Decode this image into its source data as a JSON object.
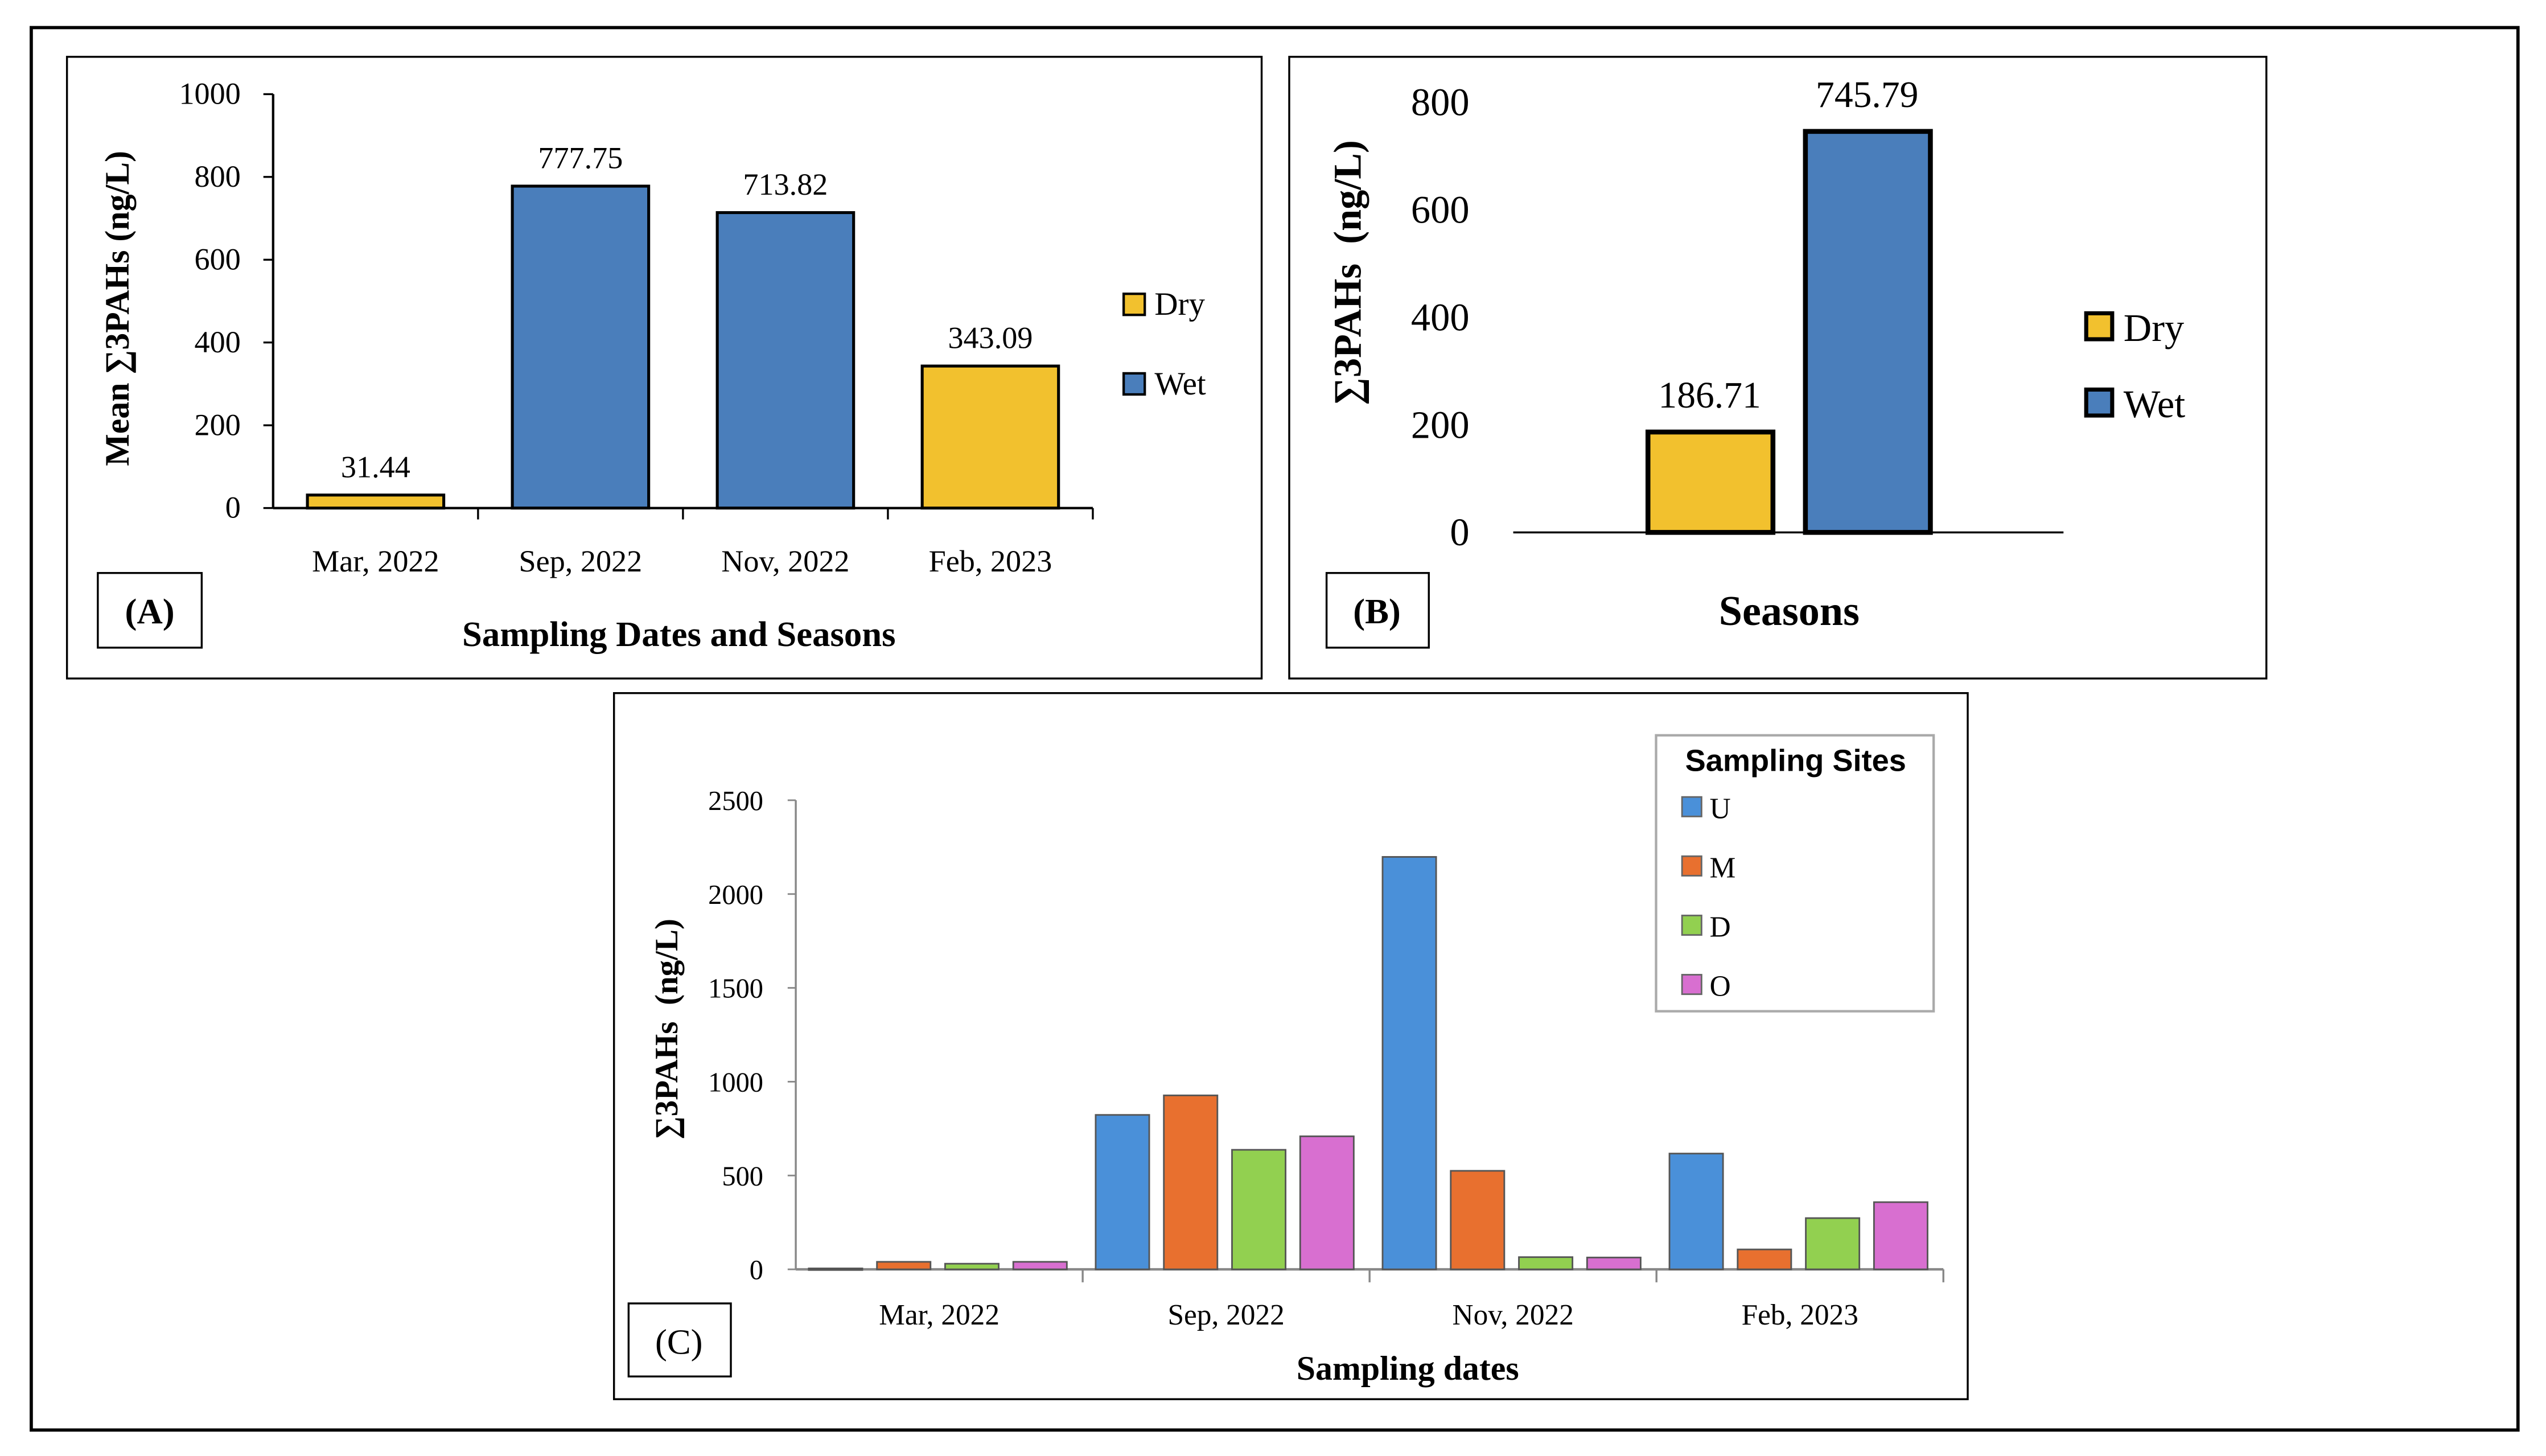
{
  "chart_data": [
    {
      "type": "bar",
      "panel_label": "(A)",
      "categories": [
        "Mar, 2022",
        "Sep, 2022",
        "Nov, 2022",
        "Feb, 2023"
      ],
      "values": [
        31.44,
        777.75,
        713.82,
        343.09
      ],
      "value_labels": [
        "31.44",
        "777.75",
        "713.82",
        "343.09"
      ],
      "season": [
        "Dry",
        "Wet",
        "Wet",
        "Dry"
      ],
      "xlabel": "Sampling Dates and Seasons",
      "ylabel": "Mean ∑3PAHs (ng/L)",
      "ylim": [
        0,
        1000
      ],
      "yticks": [
        "0",
        "200",
        "400",
        "600",
        "800",
        "1000"
      ],
      "legend": [
        {
          "label": "Dry",
          "color": "#F2C12E"
        },
        {
          "label": "Wet",
          "color": "#4A7EBB"
        }
      ],
      "legend_position": "right"
    },
    {
      "type": "bar",
      "panel_label": "(B)",
      "categories": [
        "Dry",
        "Wet"
      ],
      "values": [
        186.71,
        745.79
      ],
      "value_labels": [
        "186.71",
        "745.79"
      ],
      "xlabel": "Seasons",
      "ylabel": "∑3PAHs  (ng/L)",
      "ylim": [
        0,
        800
      ],
      "yticks": [
        "0",
        "200",
        "400",
        "600",
        "800"
      ],
      "legend": [
        {
          "label": "Dry",
          "color": "#F2C12E"
        },
        {
          "label": "Wet",
          "color": "#4A7EBB"
        }
      ],
      "legend_position": "right"
    },
    {
      "type": "bar",
      "panel_label": "(C)",
      "categories": [
        "Mar, 2022",
        "Sep, 2022",
        "Nov, 2022",
        "Feb, 2023"
      ],
      "series": [
        {
          "name": "U",
          "color": "#4A90D9",
          "values": [
            5,
            823,
            2198,
            617
          ]
        },
        {
          "name": "M",
          "color": "#E8702F",
          "values": [
            40,
            927,
            525,
            106
          ]
        },
        {
          "name": "D",
          "color": "#92D050",
          "values": [
            30,
            637,
            65,
            273
          ]
        },
        {
          "name": "O",
          "color": "#D86FD0",
          "values": [
            40,
            709,
            63,
            358
          ]
        }
      ],
      "legend_title": "Sampling Sites",
      "xlabel": "Sampling dates",
      "ylabel": "∑3PAHs  (ng/L)",
      "ylim": [
        0,
        2500
      ],
      "yticks": [
        "0",
        "500",
        "1000",
        "1500",
        "2000",
        "2500"
      ],
      "legend_position": "top-right"
    }
  ]
}
